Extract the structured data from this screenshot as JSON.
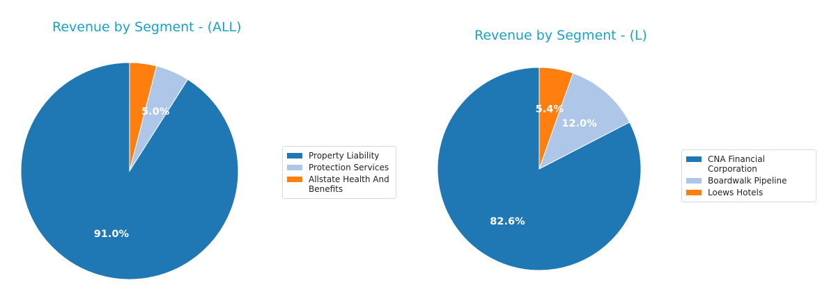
{
  "chart_data": [
    {
      "type": "pie",
      "title": "Revenue by Segment - (ALL)",
      "series": [
        {
          "name": "Property Liability",
          "value": 91.0,
          "label": "91.0%",
          "color": "#1f77b4"
        },
        {
          "name": "Protection Services",
          "value": 5.0,
          "label": "5.0%",
          "color": "#aec7e8"
        },
        {
          "name": "Allstate Health And Benefits",
          "value": 4.0,
          "label": "",
          "color": "#ff7f0e"
        }
      ],
      "legend": [
        "Property Liability",
        "Protection Services",
        "Allstate Health And\nBenefits"
      ],
      "legend_position": "right"
    },
    {
      "type": "pie",
      "title": "Revenue by Segment - (L)",
      "series": [
        {
          "name": "CNA Financial Corporation",
          "value": 82.6,
          "label": "82.6%",
          "color": "#1f77b4"
        },
        {
          "name": "Boardwalk Pipeline",
          "value": 12.0,
          "label": "12.0%",
          "color": "#aec7e8"
        },
        {
          "name": "Loews Hotels",
          "value": 5.4,
          "label": "5.4%",
          "color": "#ff7f0e"
        }
      ],
      "legend": [
        "CNA Financial Corporation",
        "Boardwalk Pipeline",
        "Loews Hotels"
      ],
      "legend_position": "right"
    }
  ]
}
